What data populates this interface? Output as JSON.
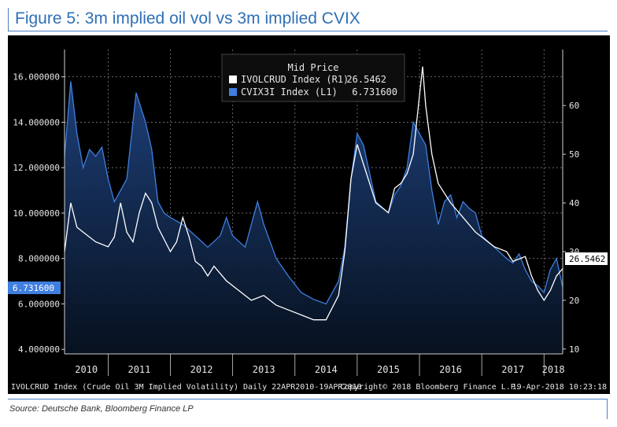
{
  "title": "Figure 5: 3m implied oil vol vs 3m implied CVIX",
  "source": "Source: Deutsche Bank, Bloomberg Finance LP",
  "footer": {
    "left": "IVOLCRUD Index (Crude Oil 3M Implied Volatility) Daily 22APR2010-19APR2018",
    "middle": "Copyright© 2018 Bloomberg Finance L.P.",
    "right": "19-Apr-2018 10:23:18"
  },
  "colors": {
    "background": "#000000",
    "oil": "#ffffff",
    "cvix": "#3f7fe0",
    "area_top": "#1d3f78",
    "area_bottom": "#07111f"
  },
  "chart_data": {
    "type": "line",
    "legend": {
      "title": "Mid Price",
      "placement": "top-center",
      "entries": [
        {
          "label": "IVOLCRUD Index  (R1)",
          "value": "26.5462",
          "color": "#ffffff"
        },
        {
          "label": "CVIX3I Index  (L1)",
          "value": "6.731600",
          "color": "#3f7fe0"
        }
      ]
    },
    "x_labels": [
      "2010",
      "2011",
      "2012",
      "2013",
      "2014",
      "2015",
      "2016",
      "2017",
      "2018"
    ],
    "x_range": [
      2010.3,
      2018.3
    ],
    "left_axis": {
      "ticks": [
        "16.000000",
        "14.000000",
        "12.000000",
        "10.000000",
        "8.000000",
        "6.000000",
        "4.000000"
      ],
      "range": [
        3.8,
        17.2
      ],
      "last_value": "6.731600"
    },
    "right_axis": {
      "ticks": [
        "60",
        "50",
        "40",
        "30",
        "20",
        "10"
      ],
      "range": [
        9,
        71.5
      ],
      "last_value": "26.5462"
    },
    "grid": true,
    "series": [
      {
        "name": "CVIX3I Index  (L1)",
        "axis": "left",
        "x": [
          2010.3,
          2010.4,
          2010.5,
          2010.6,
          2010.7,
          2010.8,
          2010.9,
          2011.0,
          2011.1,
          2011.2,
          2011.3,
          2011.45,
          2011.6,
          2011.7,
          2011.8,
          2011.9,
          2012.0,
          2012.2,
          2012.4,
          2012.6,
          2012.8,
          2012.9,
          2013.0,
          2013.2,
          2013.4,
          2013.5,
          2013.7,
          2013.9,
          2014.1,
          2014.3,
          2014.5,
          2014.7,
          2014.8,
          2014.9,
          2015.0,
          2015.1,
          2015.3,
          2015.5,
          2015.6,
          2015.7,
          2015.8,
          2015.9,
          2016.0,
          2016.1,
          2016.2,
          2016.3,
          2016.4,
          2016.5,
          2016.6,
          2016.7,
          2016.8,
          2016.9,
          2017.0,
          2017.2,
          2017.4,
          2017.5,
          2017.6,
          2017.7,
          2017.8,
          2017.9,
          2018.0,
          2018.1,
          2018.2,
          2018.3
        ],
        "y": [
          12.5,
          15.8,
          13.5,
          12.0,
          12.8,
          12.5,
          12.9,
          11.5,
          10.5,
          11.0,
          11.5,
          15.3,
          14.0,
          12.8,
          10.5,
          10.0,
          9.8,
          9.5,
          9.0,
          8.5,
          9.0,
          9.8,
          9.0,
          8.5,
          10.5,
          9.5,
          8.0,
          7.2,
          6.5,
          6.2,
          6.0,
          7.0,
          8.5,
          11.5,
          13.5,
          13.0,
          10.5,
          10.0,
          10.8,
          11.2,
          12.0,
          14.0,
          13.5,
          13.0,
          11.0,
          9.5,
          10.5,
          10.8,
          9.8,
          10.5,
          10.2,
          10.0,
          9.0,
          8.5,
          8.0,
          7.8,
          8.2,
          7.5,
          7.0,
          6.8,
          6.5,
          7.5,
          8.0,
          6.73
        ]
      },
      {
        "name": "IVOLCRUD Index  (R1)",
        "axis": "right",
        "x": [
          2010.3,
          2010.4,
          2010.5,
          2010.6,
          2010.8,
          2011.0,
          2011.1,
          2011.2,
          2011.3,
          2011.4,
          2011.5,
          2011.6,
          2011.7,
          2011.8,
          2012.0,
          2012.1,
          2012.2,
          2012.3,
          2012.4,
          2012.5,
          2012.6,
          2012.7,
          2012.9,
          2013.1,
          2013.3,
          2013.5,
          2013.7,
          2013.9,
          2014.1,
          2014.3,
          2014.5,
          2014.7,
          2014.8,
          2014.9,
          2015.0,
          2015.1,
          2015.3,
          2015.5,
          2015.6,
          2015.7,
          2015.8,
          2015.9,
          2016.0,
          2016.05,
          2016.1,
          2016.2,
          2016.3,
          2016.5,
          2016.7,
          2016.9,
          2017.0,
          2017.2,
          2017.4,
          2017.5,
          2017.7,
          2017.8,
          2017.9,
          2018.0,
          2018.1,
          2018.2,
          2018.3
        ],
        "y": [
          30,
          40,
          35,
          34,
          32,
          31,
          33,
          40,
          34,
          32,
          38,
          42,
          40,
          35,
          30,
          32,
          37,
          33,
          28,
          27,
          25,
          27,
          24,
          22,
          20,
          21,
          19,
          18,
          17,
          16,
          16,
          21,
          30,
          45,
          52,
          48,
          40,
          38,
          43,
          44,
          46,
          50,
          62,
          68,
          60,
          50,
          44,
          40,
          37,
          34,
          33,
          31,
          30,
          28,
          29,
          25,
          22,
          20,
          22,
          25,
          26.5
        ]
      }
    ]
  }
}
